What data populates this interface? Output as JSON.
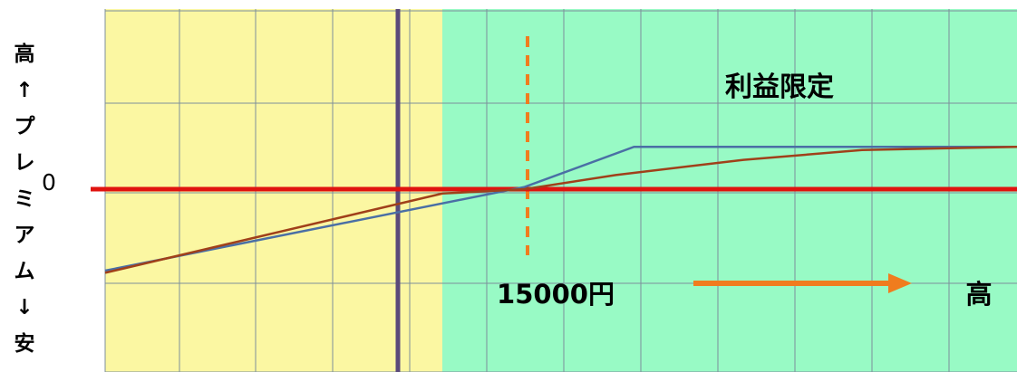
{
  "chart_data": {
    "type": "line",
    "ylabel_chars": [
      "高",
      "↑",
      "プ",
      "レ",
      "ミ",
      "ア",
      "ム",
      "↓",
      "安"
    ],
    "zero_label": "0",
    "region_label": "利益限定",
    "strike_label": "15000円",
    "x_high_label": "高",
    "series": [
      {
        "color": "#4a6fa5",
        "values": [
          [
            0,
            -0.75
          ],
          [
            0.46,
            0.02
          ],
          [
            0.58,
            0.39
          ],
          [
            1.0,
            0.39
          ]
        ]
      },
      {
        "color": "#a0401a",
        "values": [
          [
            0,
            -0.77
          ],
          [
            0.37,
            -0.04
          ],
          [
            0.46,
            0.0
          ],
          [
            0.56,
            0.13
          ],
          [
            0.7,
            0.27
          ],
          [
            0.83,
            0.36
          ],
          [
            1.0,
            0.39
          ]
        ]
      }
    ],
    "colors": {
      "yellow_region": "#fbf7a2",
      "green_region": "#98fac5",
      "grid": "#7d8f9a",
      "zero_line": "#e0130f",
      "strike_line": "#f07c1e",
      "arrow": "#f07c1e"
    }
  }
}
